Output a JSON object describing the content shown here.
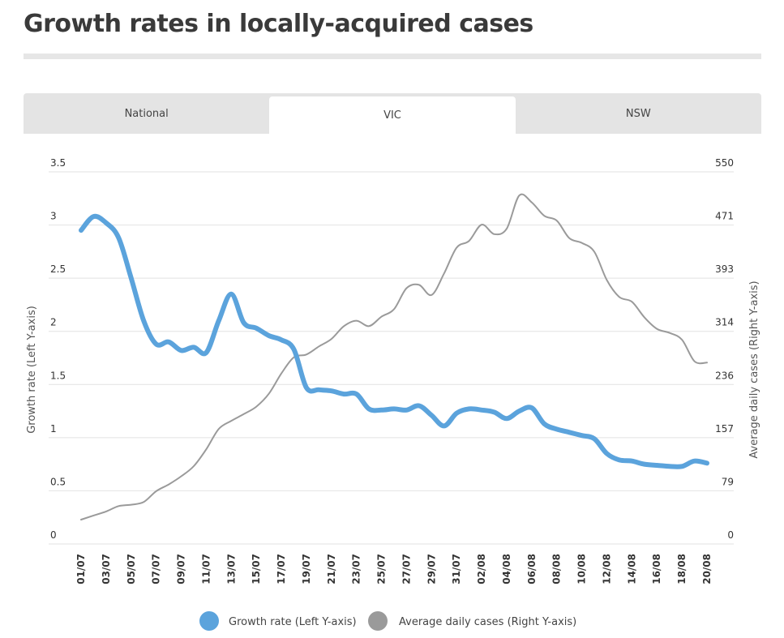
{
  "header": {
    "title": "Growth rates in locally-acquired cases"
  },
  "tabs": [
    {
      "label": "National",
      "active": false
    },
    {
      "label": "VIC",
      "active": true
    },
    {
      "label": "NSW",
      "active": false
    }
  ],
  "colors": {
    "growth": "#5ba3dc",
    "cases": "#9a9a9a",
    "grid": "#e2e2e2"
  },
  "chart_data": {
    "type": "line",
    "title": "Growth rates in locally-acquired cases",
    "x_tick_labels": [
      "01/07",
      "03/07",
      "05/07",
      "07/07",
      "09/07",
      "11/07",
      "13/07",
      "15/07",
      "17/07",
      "19/07",
      "21/07",
      "23/07",
      "25/07",
      "27/07",
      "29/07",
      "31/07",
      "02/08",
      "04/08",
      "06/08",
      "08/08",
      "10/08",
      "12/08",
      "14/08",
      "16/08",
      "18/08",
      "20/08"
    ],
    "x_count": 51,
    "y_left": {
      "label": "Growth rate (Left Y-axis)",
      "range": [
        0,
        3.5
      ],
      "ticks": [
        "0",
        "0.5",
        "1",
        "1.5",
        "2",
        "2.5",
        "3",
        "3.5"
      ]
    },
    "y_right": {
      "label": "Average daily cases (Right Y-axis)",
      "range": [
        0,
        550
      ],
      "ticks": [
        "0",
        "79",
        "157",
        "236",
        "314",
        "393",
        "471",
        "550"
      ]
    },
    "series": [
      {
        "name": "Growth rate (Left Y-axis)",
        "axis": "left",
        "values": [
          2.95,
          3.08,
          3.02,
          2.88,
          2.5,
          2.1,
          1.88,
          1.9,
          1.82,
          1.85,
          1.8,
          2.1,
          2.35,
          2.08,
          2.03,
          1.96,
          1.92,
          1.83,
          1.47,
          1.45,
          1.44,
          1.41,
          1.41,
          1.27,
          1.26,
          1.27,
          1.26,
          1.3,
          1.21,
          1.11,
          1.23,
          1.27,
          1.26,
          1.24,
          1.18,
          1.25,
          1.28,
          1.13,
          1.08,
          1.05,
          1.02,
          0.99,
          0.85,
          0.79,
          0.78,
          0.75,
          0.74,
          0.73,
          0.73,
          0.78,
          0.76
        ]
      },
      {
        "name": "Average daily cases (Right Y-axis)",
        "axis": "right",
        "values": [
          36,
          42,
          48,
          56,
          58,
          62,
          78,
          88,
          100,
          115,
          140,
          170,
          182,
          192,
          203,
          222,
          252,
          276,
          280,
          292,
          303,
          322,
          330,
          322,
          336,
          347,
          378,
          383,
          368,
          400,
          438,
          448,
          472,
          458,
          466,
          515,
          505,
          485,
          478,
          452,
          445,
          432,
          390,
          365,
          358,
          335,
          318,
          312,
          302,
          270,
          268
        ]
      }
    ],
    "legend": {
      "position": "bottom-center"
    },
    "grid": true
  }
}
